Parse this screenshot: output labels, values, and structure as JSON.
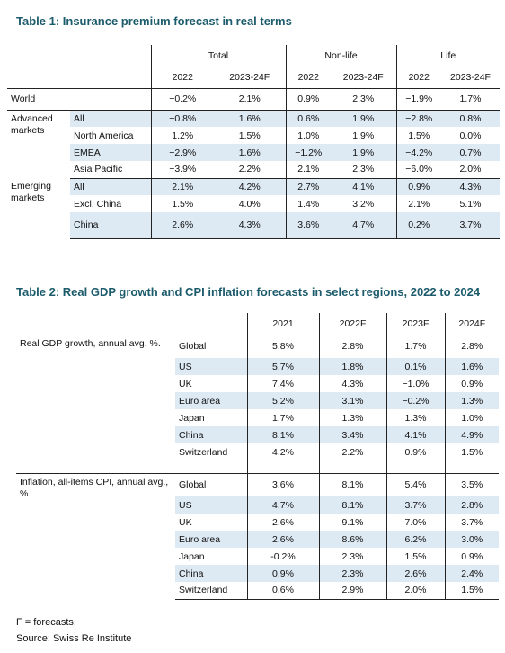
{
  "table1": {
    "title": "Table 1: Insurance premium forecast in real terms",
    "groups": [
      "Total",
      "Non-life",
      "Life"
    ],
    "columns": [
      "2022",
      "2023-24F",
      "2022",
      "2023-24F",
      "2022",
      "2023-24F"
    ],
    "sections": [
      {
        "label": "World",
        "values": [
          "−0.2%",
          "2.1%",
          "0.9%",
          "2.3%",
          "−1.9%",
          "1.7%"
        ]
      },
      {
        "label": "Advanced markets",
        "rows": [
          {
            "label": "All",
            "values": [
              "−0.8%",
              "1.6%",
              "0.6%",
              "1.9%",
              "−2.8%",
              "0.8%"
            ]
          },
          {
            "label": "North America",
            "values": [
              "1.2%",
              "1.5%",
              "1.0%",
              "1.9%",
              "1.5%",
              "0.0%"
            ]
          },
          {
            "label": "EMEA",
            "values": [
              "−2.9%",
              "1.6%",
              "−1.2%",
              "1.9%",
              "−4.2%",
              "0.7%"
            ]
          },
          {
            "label": "Asia Pacific",
            "values": [
              "−3.9%",
              "2.2%",
              "2.1%",
              "2.3%",
              "−6.0%",
              "2.0%"
            ]
          }
        ]
      },
      {
        "label": "Emerging markets",
        "rows": [
          {
            "label": "All",
            "values": [
              "2.1%",
              "4.2%",
              "2.7%",
              "4.1%",
              "0.9%",
              "4.3%"
            ]
          },
          {
            "label": "Excl. China",
            "values": [
              "1.5%",
              "4.0%",
              "1.4%",
              "3.2%",
              "2.1%",
              "5.1%"
            ]
          },
          {
            "label": "China",
            "values": [
              "2.6%",
              "4.3%",
              "3.6%",
              "4.7%",
              "0.2%",
              "3.7%"
            ]
          }
        ]
      }
    ]
  },
  "table2": {
    "title": "Table 2: Real GDP growth and CPI inflation forecasts in select regions, 2022 to 2024",
    "columns": [
      "2021",
      "2022F",
      "2023F",
      "2024F"
    ],
    "sections": [
      {
        "label": "Real GDP growth, annual avg. %.",
        "rows": [
          {
            "label": "Global",
            "values": [
              "5.8%",
              "2.8%",
              "1.7%",
              "2.8%"
            ]
          },
          {
            "label": "US",
            "values": [
              "5.7%",
              "1.8%",
              "0.1%",
              "1.6%"
            ]
          },
          {
            "label": "UK",
            "values": [
              "7.4%",
              "4.3%",
              "−1.0%",
              "0.9%"
            ]
          },
          {
            "label": "Euro area",
            "values": [
              "5.2%",
              "3.1%",
              "−0.2%",
              "1.3%"
            ]
          },
          {
            "label": "Japan",
            "values": [
              "1.7%",
              "1.3%",
              "1.3%",
              "1.0%"
            ]
          },
          {
            "label": "China",
            "values": [
              "8.1%",
              "3.4%",
              "4.1%",
              "4.9%"
            ]
          },
          {
            "label": "Switzerland",
            "values": [
              "4.2%",
              "2.2%",
              "0.9%",
              "1.5%"
            ]
          }
        ]
      },
      {
        "label": "Inflation, all-items CPI, annual avg., %",
        "rows": [
          {
            "label": "Global",
            "values": [
              "3.6%",
              "8.1%",
              "5.4%",
              "3.5%"
            ]
          },
          {
            "label": "US",
            "values": [
              "4.7%",
              "8.1%",
              "3.7%",
              "2.8%"
            ]
          },
          {
            "label": "UK",
            "values": [
              "2.6%",
              "9.1%",
              "7.0%",
              "3.7%"
            ]
          },
          {
            "label": "Euro area",
            "values": [
              "2.6%",
              "8.6%",
              "6.2%",
              "3.0%"
            ]
          },
          {
            "label": "Japan",
            "values": [
              "-0.2%",
              "2.3%",
              "1.5%",
              "0.9%"
            ]
          },
          {
            "label": "China",
            "values": [
              "0.9%",
              "2.3%",
              "2.6%",
              "2.4%"
            ]
          },
          {
            "label": "Switzerland",
            "values": [
              "0.6%",
              "2.9%",
              "2.0%",
              "1.5%"
            ]
          }
        ]
      }
    ]
  },
  "footer": {
    "note": "F = forecasts.",
    "source": "Source: Swiss Re Institute"
  }
}
